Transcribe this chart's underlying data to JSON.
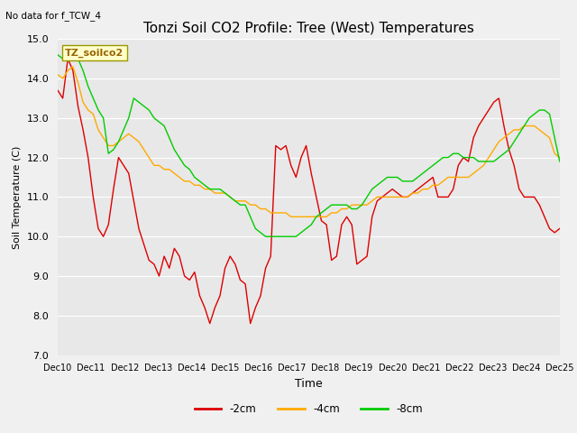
{
  "title": "Tonzi Soil CO2 Profile: Tree (West) Temperatures",
  "subtitle": "No data for f_TCW_4",
  "xlabel": "Time",
  "ylabel": "Soil Temperature (C)",
  "ylim": [
    7.0,
    15.0
  ],
  "yticks": [
    7.0,
    8.0,
    9.0,
    10.0,
    11.0,
    12.0,
    13.0,
    14.0,
    15.0
  ],
  "xtick_labels": [
    "Dec 10",
    "Dec 11",
    "Dec 12",
    "Dec 13",
    "Dec 14",
    "Dec 15",
    "Dec 16",
    "Dec 17",
    "Dec 18",
    "Dec 19",
    "Dec 20",
    "Dec 21",
    "Dec 22",
    "Dec 23",
    "Dec 24",
    "Dec 25"
  ],
  "legend_label": "TZ_soilco2",
  "bg_color": "#e8e8e8",
  "fig_bg_color": "#f0f0f0",
  "line_colors": {
    "2cm": "#dd0000",
    "4cm": "#ffaa00",
    "8cm": "#00cc00"
  },
  "series_2cm": [
    13.7,
    13.5,
    14.5,
    14.2,
    13.3,
    12.7,
    12.0,
    11.0,
    10.2,
    10.0,
    10.3,
    11.2,
    12.0,
    11.8,
    11.6,
    10.9,
    10.2,
    9.8,
    9.4,
    9.3,
    9.0,
    9.5,
    9.2,
    9.7,
    9.5,
    9.0,
    8.9,
    9.1,
    8.5,
    8.2,
    7.8,
    8.2,
    8.5,
    9.2,
    9.5,
    9.3,
    8.9,
    8.8,
    7.8,
    8.2,
    8.5,
    9.2,
    9.5,
    12.3,
    12.2,
    12.3,
    11.8,
    11.5,
    12.0,
    12.3,
    11.6,
    11.0,
    10.4,
    10.3,
    9.4,
    9.5,
    10.3,
    10.5,
    10.3,
    9.3,
    9.4,
    9.5,
    10.5,
    10.9,
    11.0,
    11.1,
    11.2,
    11.1,
    11.0,
    11.0,
    11.1,
    11.2,
    11.3,
    11.4,
    11.5,
    11.0,
    11.0,
    11.0,
    11.2,
    11.8,
    12.0,
    11.9,
    12.5,
    12.8,
    13.0,
    13.2,
    13.4,
    13.5,
    12.8,
    12.2,
    11.8,
    11.2,
    11.0,
    11.0,
    11.0,
    10.8,
    10.5,
    10.2,
    10.1,
    10.2
  ],
  "series_4cm": [
    14.1,
    14.0,
    14.2,
    14.3,
    13.9,
    13.4,
    13.2,
    13.1,
    12.7,
    12.5,
    12.3,
    12.3,
    12.4,
    12.5,
    12.6,
    12.5,
    12.4,
    12.2,
    12.0,
    11.8,
    11.8,
    11.7,
    11.7,
    11.6,
    11.5,
    11.4,
    11.4,
    11.3,
    11.3,
    11.2,
    11.2,
    11.1,
    11.1,
    11.1,
    11.0,
    10.9,
    10.9,
    10.9,
    10.8,
    10.8,
    10.7,
    10.7,
    10.6,
    10.6,
    10.6,
    10.6,
    10.5,
    10.5,
    10.5,
    10.5,
    10.5,
    10.5,
    10.5,
    10.5,
    10.6,
    10.6,
    10.7,
    10.7,
    10.8,
    10.8,
    10.8,
    10.8,
    10.9,
    11.0,
    11.0,
    11.0,
    11.0,
    11.0,
    11.0,
    11.0,
    11.1,
    11.1,
    11.2,
    11.2,
    11.3,
    11.3,
    11.4,
    11.5,
    11.5,
    11.5,
    11.5,
    11.5,
    11.6,
    11.7,
    11.8,
    12.0,
    12.2,
    12.4,
    12.5,
    12.6,
    12.7,
    12.7,
    12.8,
    12.8,
    12.8,
    12.7,
    12.6,
    12.5,
    12.1,
    12.0
  ],
  "series_8cm": [
    14.6,
    14.5,
    14.8,
    14.6,
    14.5,
    14.2,
    13.8,
    13.5,
    13.2,
    13.0,
    12.1,
    12.2,
    12.4,
    12.7,
    13.0,
    13.5,
    13.4,
    13.3,
    13.2,
    13.0,
    12.9,
    12.8,
    12.5,
    12.2,
    12.0,
    11.8,
    11.7,
    11.5,
    11.4,
    11.3,
    11.2,
    11.2,
    11.2,
    11.1,
    11.0,
    10.9,
    10.8,
    10.8,
    10.5,
    10.2,
    10.1,
    10.0,
    10.0,
    10.0,
    10.0,
    10.0,
    10.0,
    10.0,
    10.1,
    10.2,
    10.3,
    10.5,
    10.6,
    10.7,
    10.8,
    10.8,
    10.8,
    10.8,
    10.7,
    10.7,
    10.8,
    11.0,
    11.2,
    11.3,
    11.4,
    11.5,
    11.5,
    11.5,
    11.4,
    11.4,
    11.4,
    11.5,
    11.6,
    11.7,
    11.8,
    11.9,
    12.0,
    12.0,
    12.1,
    12.1,
    12.0,
    12.0,
    12.0,
    11.9,
    11.9,
    11.9,
    11.9,
    12.0,
    12.1,
    12.2,
    12.4,
    12.6,
    12.8,
    13.0,
    13.1,
    13.2,
    13.2,
    13.1,
    12.5,
    11.9
  ]
}
